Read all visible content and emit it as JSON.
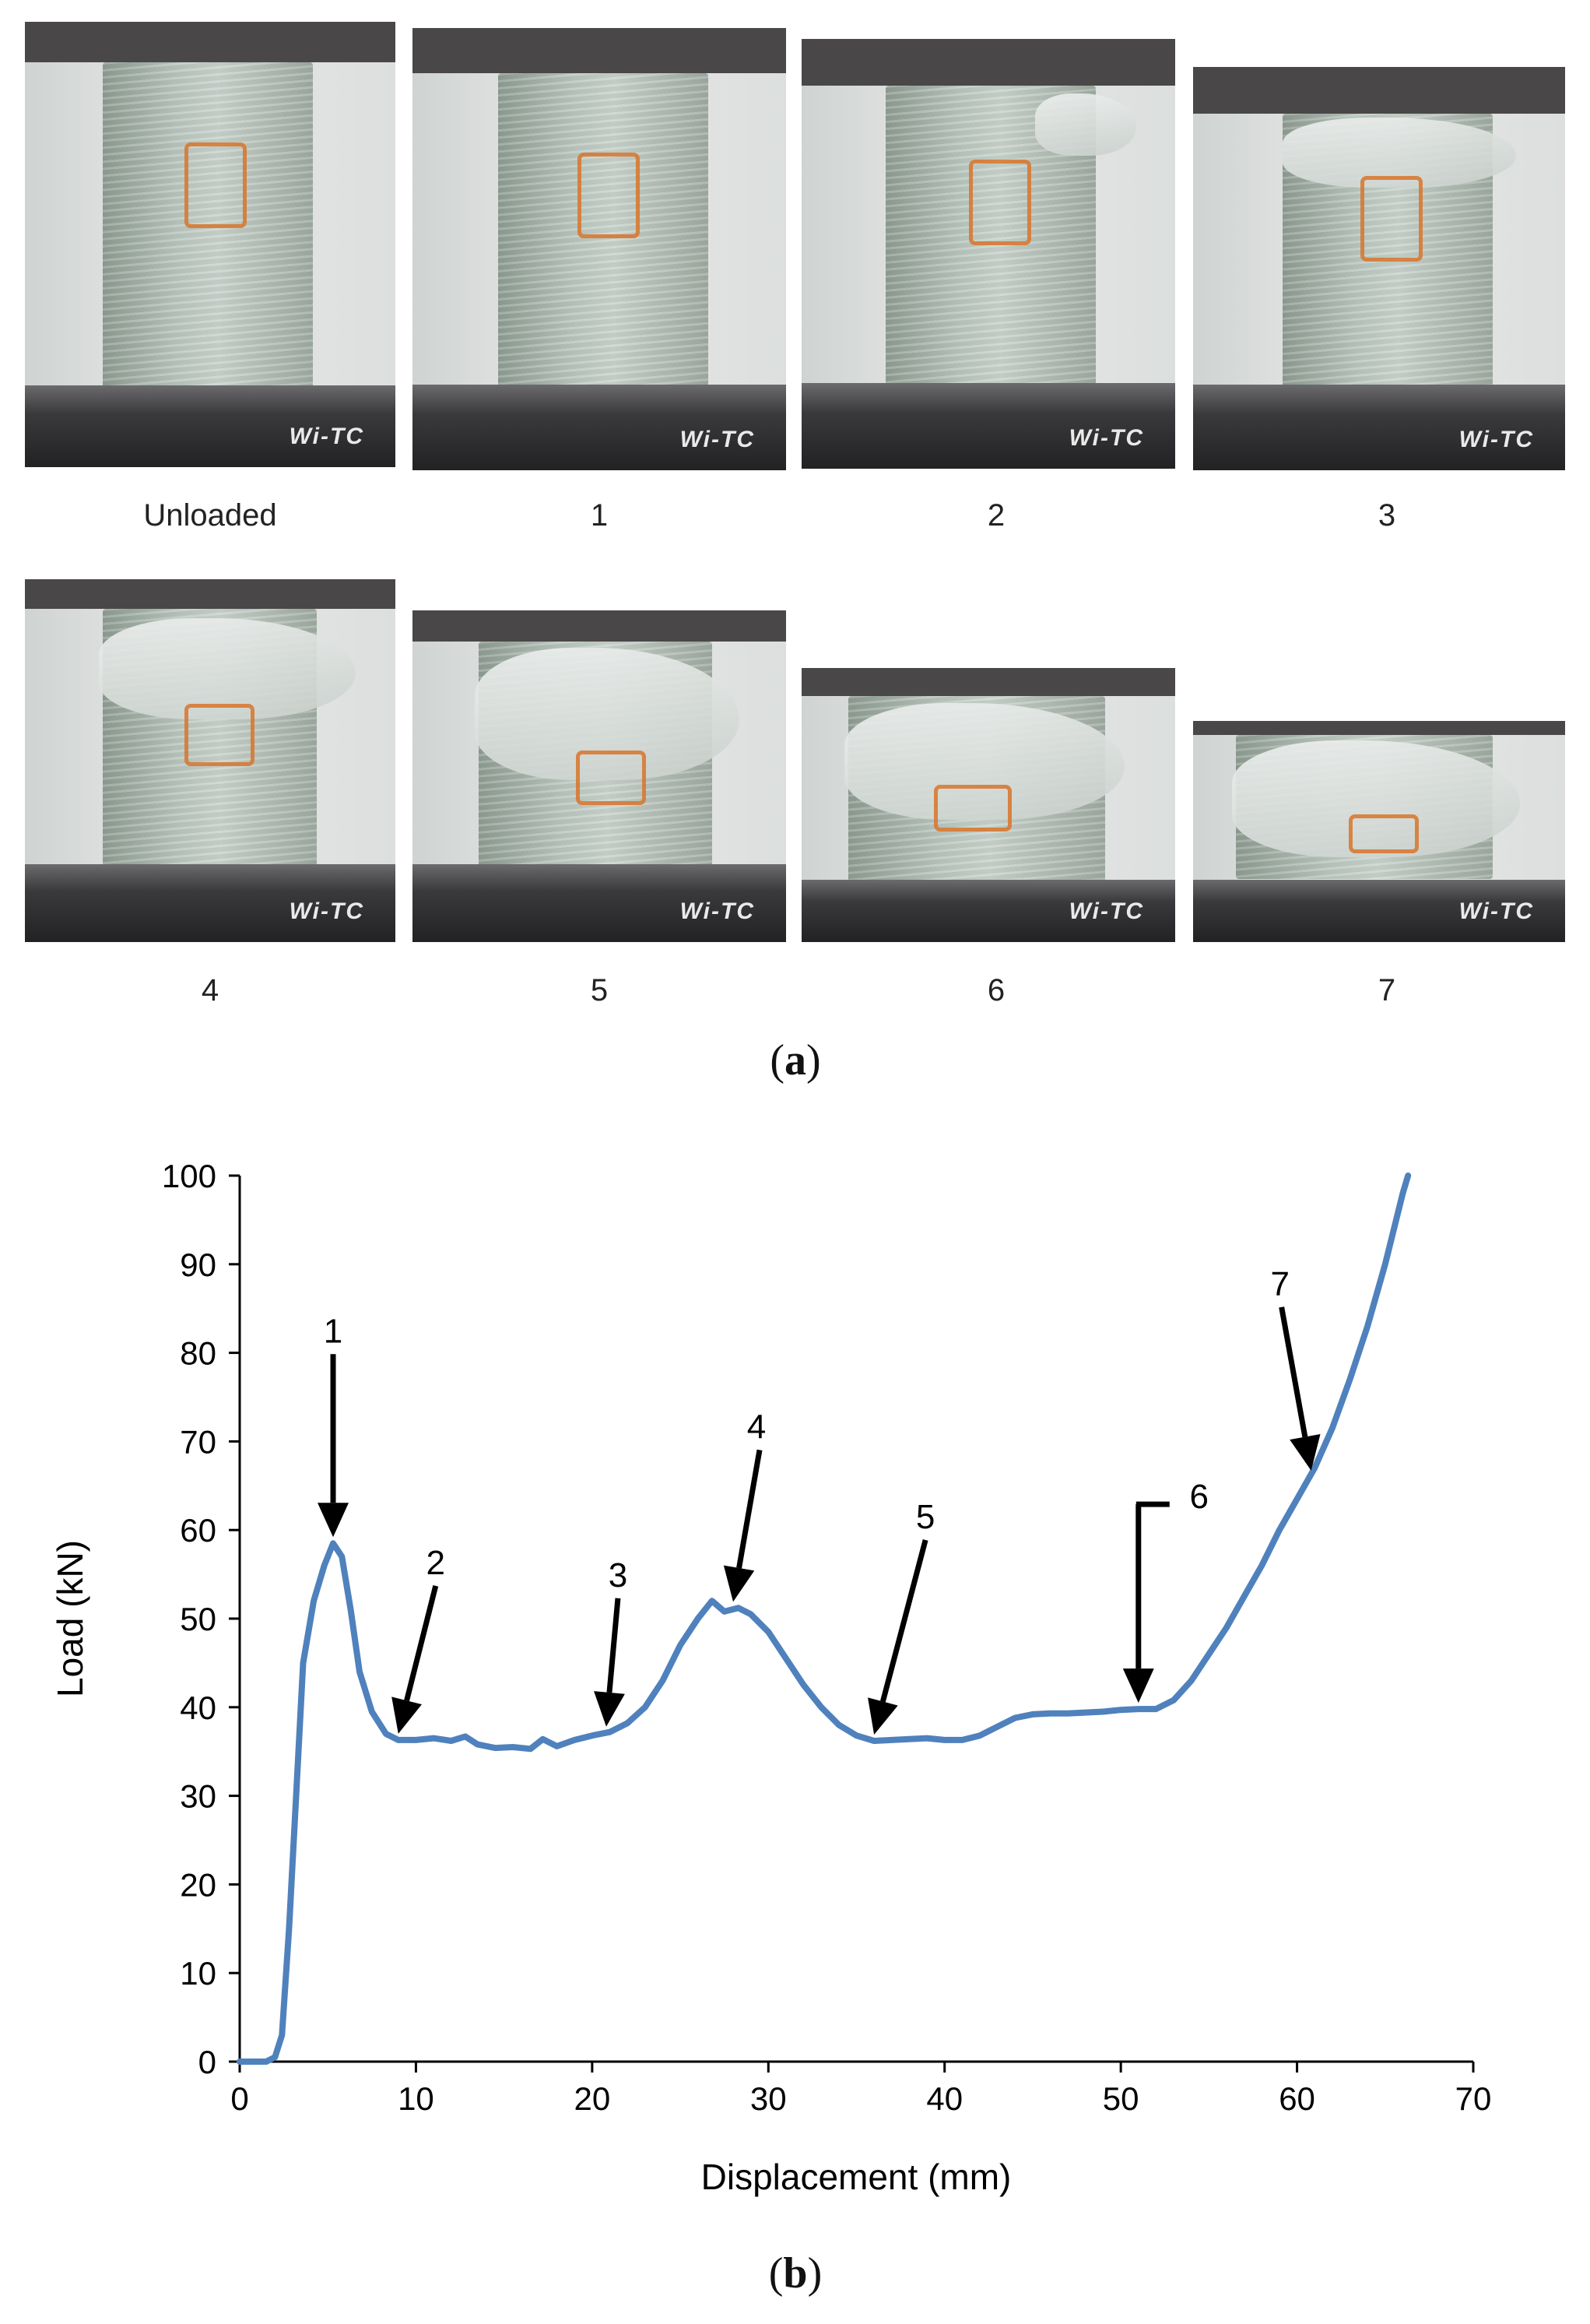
{
  "panel_a": {
    "label_open": "(",
    "label_letter": "a",
    "label_close": ")",
    "photo_captions": [
      "Unloaded",
      "1",
      "2",
      "3",
      "4",
      "5",
      "6",
      "7"
    ],
    "logo_text": "Wi-TC"
  },
  "panel_b": {
    "label_open": "(",
    "label_letter": "b",
    "label_close": ")"
  },
  "chart_data": {
    "type": "line",
    "title": "",
    "xlabel": "Displacement (mm)",
    "ylabel": "Load (kN)",
    "xlim": [
      0,
      70
    ],
    "ylim": [
      0,
      100
    ],
    "x_ticks": [
      0,
      10,
      20,
      30,
      40,
      50,
      60,
      70
    ],
    "y_ticks": [
      0,
      10,
      20,
      30,
      40,
      50,
      60,
      70,
      80,
      90,
      100
    ],
    "grid": false,
    "series": [
      {
        "name": "Load-displacement",
        "color": "#4f81bd",
        "points": [
          [
            0,
            0
          ],
          [
            1.5,
            0
          ],
          [
            2,
            0.5
          ],
          [
            2.4,
            3
          ],
          [
            2.8,
            15
          ],
          [
            3.2,
            30
          ],
          [
            3.6,
            45
          ],
          [
            4.2,
            52
          ],
          [
            4.8,
            56
          ],
          [
            5.3,
            58.5
          ],
          [
            5.8,
            57
          ],
          [
            6.3,
            51
          ],
          [
            6.8,
            44
          ],
          [
            7.5,
            39.5
          ],
          [
            8.3,
            37
          ],
          [
            9,
            36.3
          ],
          [
            10,
            36.3
          ],
          [
            11,
            36.5
          ],
          [
            12,
            36.2
          ],
          [
            12.8,
            36.7
          ],
          [
            13.5,
            35.8
          ],
          [
            14.5,
            35.4
          ],
          [
            15.5,
            35.5
          ],
          [
            16.5,
            35.3
          ],
          [
            17.2,
            36.4
          ],
          [
            18,
            35.6
          ],
          [
            19,
            36.3
          ],
          [
            20,
            36.8
          ],
          [
            21,
            37.2
          ],
          [
            22,
            38.2
          ],
          [
            23,
            40
          ],
          [
            24,
            43
          ],
          [
            25,
            47
          ],
          [
            26,
            50
          ],
          [
            26.8,
            52
          ],
          [
            27.5,
            50.8
          ],
          [
            28.3,
            51.2
          ],
          [
            29,
            50.5
          ],
          [
            30,
            48.5
          ],
          [
            31,
            45.5
          ],
          [
            32,
            42.5
          ],
          [
            33,
            40
          ],
          [
            34,
            38
          ],
          [
            35,
            36.8
          ],
          [
            36,
            36.2
          ],
          [
            37,
            36.3
          ],
          [
            38,
            36.4
          ],
          [
            39,
            36.5
          ],
          [
            40,
            36.3
          ],
          [
            41,
            36.3
          ],
          [
            42,
            36.8
          ],
          [
            43,
            37.8
          ],
          [
            44,
            38.8
          ],
          [
            45,
            39.2
          ],
          [
            46,
            39.3
          ],
          [
            47,
            39.3
          ],
          [
            48,
            39.4
          ],
          [
            49,
            39.5
          ],
          [
            50,
            39.7
          ],
          [
            51,
            39.8
          ],
          [
            52,
            39.8
          ],
          [
            53,
            40.8
          ],
          [
            54,
            43
          ],
          [
            55,
            46
          ],
          [
            56,
            49
          ],
          [
            57,
            52.5
          ],
          [
            58,
            56
          ],
          [
            59,
            60
          ],
          [
            60,
            63.5
          ],
          [
            61,
            67
          ],
          [
            62,
            71.5
          ],
          [
            63,
            77
          ],
          [
            64,
            83
          ],
          [
            65,
            90
          ],
          [
            66,
            98
          ],
          [
            66.3,
            100
          ]
        ]
      }
    ],
    "annotations": [
      {
        "label": "1",
        "x": 5.3,
        "y": 58.5
      },
      {
        "label": "2",
        "x": 9,
        "y": 36.3
      },
      {
        "label": "3",
        "x": 20.8,
        "y": 37.1
      },
      {
        "label": "4",
        "x": 28,
        "y": 51.2
      },
      {
        "label": "5",
        "x": 36,
        "y": 36.2
      },
      {
        "label": "6",
        "x": 51,
        "y": 39.8
      },
      {
        "label": "7",
        "x": 60.8,
        "y": 66
      }
    ]
  }
}
